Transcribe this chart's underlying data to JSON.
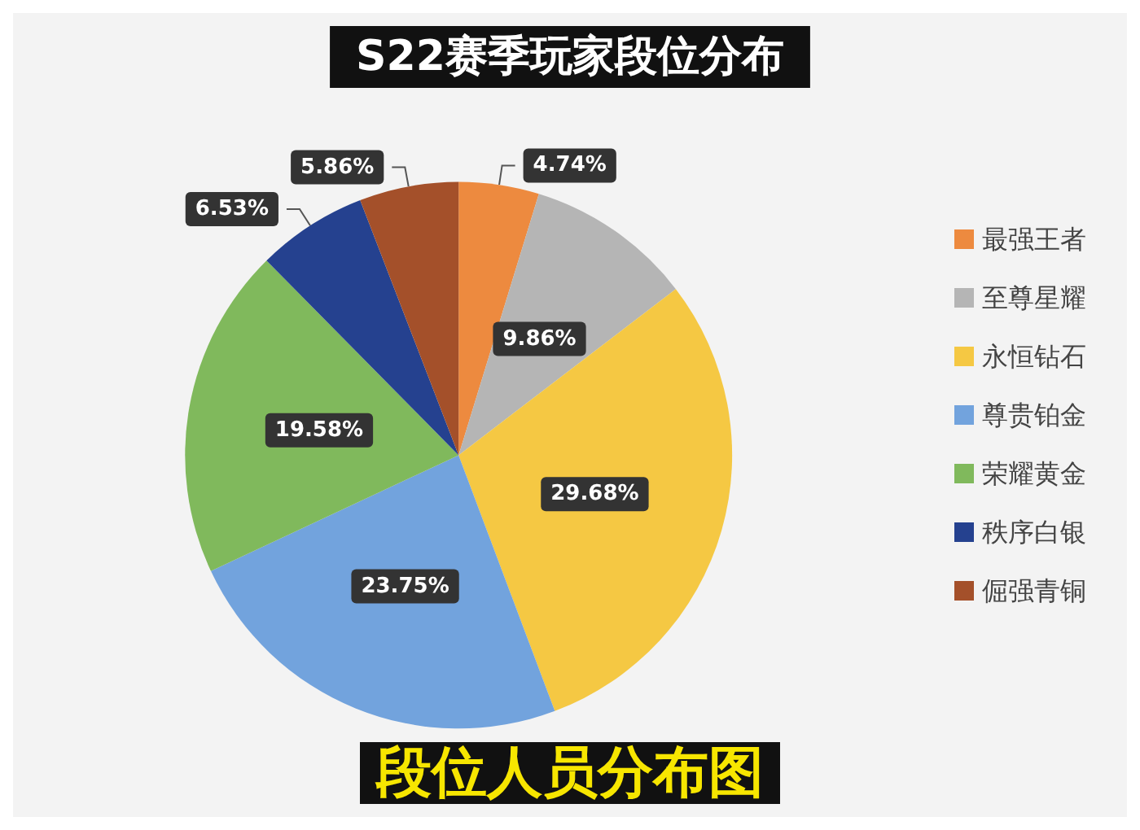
{
  "chart_data": {
    "type": "pie",
    "title": "S22赛季玩家段位分布",
    "categories": [
      "最强王者",
      "至尊星耀",
      "永恒钻石",
      "尊贵铂金",
      "荣耀黄金",
      "秩序白银",
      "倔强青铜"
    ],
    "values": [
      4.74,
      9.86,
      29.68,
      23.75,
      19.58,
      6.53,
      5.86
    ],
    "value_labels": [
      "4.74%",
      "9.86%",
      "29.68%",
      "23.75%",
      "19.58%",
      "6.53%",
      "5.86%"
    ],
    "colors": [
      "#ed8a3f",
      "#b5b5b5",
      "#f5c843",
      "#72a3dd",
      "#80b95c",
      "#25418f",
      "#a4502a"
    ],
    "legend": "right",
    "annotations": [
      "段位人员分布图"
    ]
  }
}
